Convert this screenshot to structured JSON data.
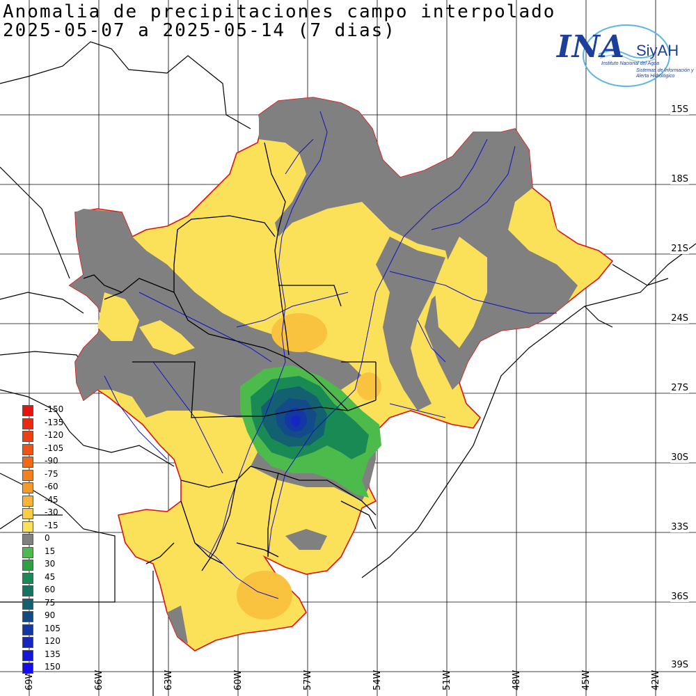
{
  "title": {
    "line1": "Anomalia de precipitaciones campo interpolado",
    "line2": "2025-05-07 a 2025-05-14 (7 dias)"
  },
  "logo": {
    "ina": "INA",
    "siyah": "SiyAH",
    "subtitle1": "Instituto Nacional del Agua",
    "subtitle2": "Sistemas de Información y Alerta Hidrológico"
  },
  "latitudes": [
    "15S",
    "18S",
    "21S",
    "24S",
    "27S",
    "30S",
    "33S",
    "36S",
    "39S"
  ],
  "longitudes": [
    "69W",
    "66W",
    "63W",
    "60W",
    "57W",
    "54W",
    "51W",
    "48W",
    "45W",
    "42W"
  ],
  "legend": [
    {
      "label": "-150",
      "color": "#e8140f"
    },
    {
      "label": "-135",
      "color": "#ea2a10"
    },
    {
      "label": "-120",
      "color": "#ec3f12"
    },
    {
      "label": "-105",
      "color": "#ee5514"
    },
    {
      "label": "-90",
      "color": "#f06a17"
    },
    {
      "label": "-75",
      "color": "#f3801b"
    },
    {
      "label": "-60",
      "color": "#f59a28"
    },
    {
      "label": "-45",
      "color": "#f7b437"
    },
    {
      "label": "-30",
      "color": "#f9cc45"
    },
    {
      "label": "-15",
      "color": "#fbe05a"
    },
    {
      "label": "0",
      "color": "#808080"
    },
    {
      "label": "15",
      "color": "#4cbb4c"
    },
    {
      "label": "30",
      "color": "#2ea243"
    },
    {
      "label": "45",
      "color": "#1a8a55"
    },
    {
      "label": "60",
      "color": "#137560"
    },
    {
      "label": "75",
      "color": "#126070"
    },
    {
      "label": "90",
      "color": "#134b8a"
    },
    {
      "label": "105",
      "color": "#1338a5"
    },
    {
      "label": "120",
      "color": "#1428c0"
    },
    {
      "label": "135",
      "color": "#1419d8"
    },
    {
      "label": "150",
      "color": "#150cf0"
    }
  ],
  "colors": {
    "basin_outline": "#e01010",
    "rivers": "#1010c8",
    "borders": "#000000",
    "grid": "#000000"
  }
}
